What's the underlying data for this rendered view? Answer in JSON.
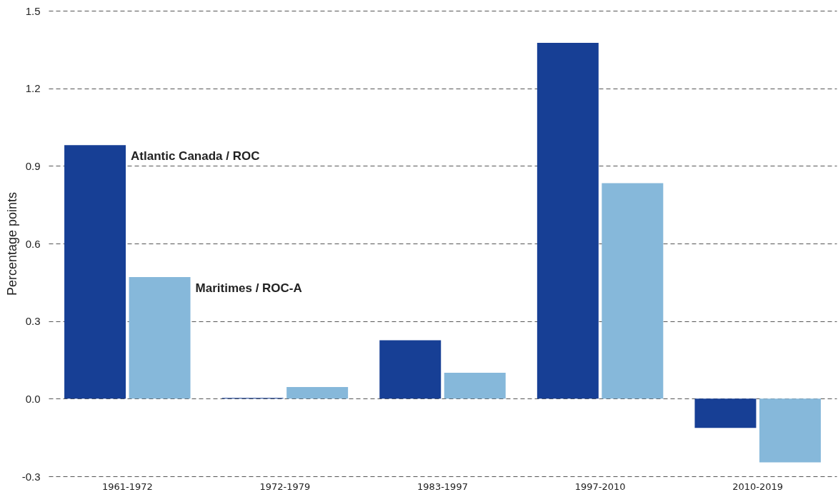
{
  "chart_data": {
    "type": "bar",
    "ylabel": "Percentage points",
    "categories": [
      "1961-1972",
      "1972-1979",
      "1983-1997",
      "1997-2010",
      "2010-2019"
    ],
    "series": [
      {
        "name": "Atlantic Canada / ROC",
        "color": "#173f95",
        "values": [
          0.98,
          0.003,
          0.226,
          1.376,
          -0.113
        ]
      },
      {
        "name": "Maritimes / ROC-A",
        "color": "#86b8da",
        "values": [
          0.47,
          0.045,
          0.1,
          0.833,
          -0.246
        ]
      }
    ],
    "ylim": [
      -0.3,
      1.5
    ],
    "yticks": [
      -0.3,
      {
        "value": 0,
        "label": "0.0"
      },
      0.3,
      0.6,
      0.9,
      1.2,
      1.5
    ],
    "grid": "y",
    "legend": false
  }
}
